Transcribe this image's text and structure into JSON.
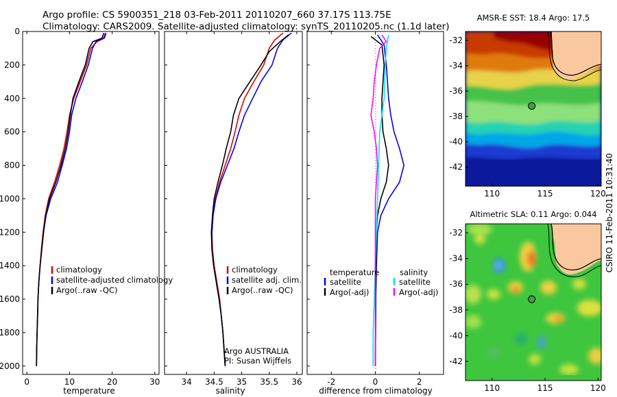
{
  "title": {
    "line1": "Argo profile: CS 5900351_218 03-Feb-2011 20110207_660 37.17S 113.75E",
    "line2": "Climatology: CARS2009. Satellite-adjusted climatology: synTS_20110205.nc (1.1d later)"
  },
  "colors": {
    "climatology": "#dd0000",
    "satellite": "#0000ee",
    "argo": "#000000",
    "cyan": "#00e5ee",
    "magenta": "#ff00ff"
  },
  "chart_data": [
    {
      "type": "line",
      "panel": "temperature",
      "xlabel": "temperature",
      "xlim": [
        -1,
        31
      ],
      "ylim": [
        2050,
        0
      ],
      "y_reversed": true,
      "xticks": [
        0,
        10,
        20,
        30
      ],
      "yticks": [
        0,
        200,
        400,
        600,
        800,
        1000,
        1200,
        1400,
        1600,
        1800,
        2000
      ],
      "legend": {
        "placement": "lower-right",
        "entries": [
          "climatology",
          "satellite-adjusted climatology",
          "Argo(..raw -QC)"
        ]
      },
      "series": [
        {
          "name": "climatology",
          "color": "#dd0000",
          "points": [
            [
              18.6,
              10
            ],
            [
              18.2,
              40
            ],
            [
              16.5,
              60
            ],
            [
              15.0,
              100
            ],
            [
              14.0,
              200
            ],
            [
              12.5,
              300
            ],
            [
              11.0,
              400
            ],
            [
              10.0,
              500
            ],
            [
              9.4,
              600
            ],
            [
              8.7,
              700
            ],
            [
              7.7,
              800
            ],
            [
              6.5,
              900
            ],
            [
              5.1,
              1000
            ],
            [
              4.3,
              1100
            ],
            [
              3.8,
              1200
            ],
            [
              3.4,
              1300
            ],
            [
              3.1,
              1400
            ],
            [
              2.8,
              1500
            ],
            [
              2.6,
              1600
            ],
            [
              2.5,
              1700
            ],
            [
              2.4,
              1800
            ],
            [
              2.3,
              1900
            ],
            [
              2.25,
              2000
            ]
          ]
        },
        {
          "name": "satellite-adjusted climatology",
          "color": "#0000ee",
          "points": [
            [
              18.4,
              10
            ],
            [
              18.0,
              40
            ],
            [
              16.2,
              60
            ],
            [
              15.4,
              100
            ],
            [
              14.4,
              200
            ],
            [
              13.0,
              300
            ],
            [
              11.5,
              400
            ],
            [
              10.5,
              500
            ],
            [
              10.0,
              600
            ],
            [
              9.3,
              700
            ],
            [
              8.3,
              800
            ],
            [
              7.2,
              900
            ],
            [
              5.6,
              1000
            ],
            [
              4.5,
              1100
            ],
            [
              3.9,
              1200
            ],
            [
              3.5,
              1300
            ],
            [
              3.1,
              1400
            ],
            [
              2.8,
              1500
            ],
            [
              2.6,
              1600
            ],
            [
              2.5,
              1700
            ],
            [
              2.4,
              1800
            ],
            [
              2.3,
              1900
            ],
            [
              2.25,
              2000
            ]
          ]
        },
        {
          "name": "Argo(..raw -QC)",
          "color": "#000000",
          "points": [
            [
              18.0,
              10
            ],
            [
              17.6,
              40
            ],
            [
              15.5,
              60
            ],
            [
              14.6,
              100
            ],
            [
              13.7,
              200
            ],
            [
              12.2,
              300
            ],
            [
              10.8,
              400
            ],
            [
              10.2,
              500
            ],
            [
              9.7,
              600
            ],
            [
              9.0,
              700
            ],
            [
              8.0,
              800
            ],
            [
              6.8,
              900
            ],
            [
              5.3,
              1000
            ],
            [
              4.4,
              1100
            ],
            [
              3.9,
              1200
            ],
            [
              3.5,
              1300
            ],
            [
              3.1,
              1400
            ],
            [
              2.8,
              1500
            ],
            [
              2.6,
              1600
            ],
            [
              2.5,
              1700
            ],
            [
              2.4,
              1800
            ],
            [
              2.3,
              1900
            ],
            [
              2.25,
              2000
            ]
          ]
        }
      ]
    },
    {
      "type": "line",
      "panel": "salinity",
      "xlabel": "salinity",
      "xlim": [
        33.6,
        36.1
      ],
      "ylim": [
        2050,
        0
      ],
      "y_reversed": true,
      "xticks": [
        34,
        34.5,
        35,
        35.5,
        36
      ],
      "xticklabels": [
        "34",
        "34.5",
        "35",
        "35.5",
        "36"
      ],
      "legend": {
        "placement": "lower-right",
        "entries": [
          "climatology",
          "satellite adj. clim.",
          "Argo(..raw -QC)"
        ]
      },
      "annotation": {
        "line1": "Argo AUSTRALIA",
        "line2": "PI: Susan Wijffels"
      },
      "series": [
        {
          "name": "climatology",
          "color": "#dd0000",
          "points": [
            [
              35.75,
              10
            ],
            [
              35.6,
              50
            ],
            [
              35.5,
              100
            ],
            [
              35.4,
              200
            ],
            [
              35.22,
              300
            ],
            [
              35.05,
              400
            ],
            [
              34.95,
              500
            ],
            [
              34.88,
              600
            ],
            [
              34.8,
              700
            ],
            [
              34.7,
              800
            ],
            [
              34.6,
              900
            ],
            [
              34.52,
              1000
            ],
            [
              34.48,
              1100
            ],
            [
              34.46,
              1200
            ],
            [
              34.47,
              1300
            ],
            [
              34.5,
              1400
            ],
            [
              34.55,
              1500
            ],
            [
              34.6,
              1600
            ],
            [
              34.63,
              1700
            ],
            [
              34.66,
              1800
            ],
            [
              34.68,
              1900
            ],
            [
              34.7,
              2000
            ]
          ]
        },
        {
          "name": "satellite adj. clim.",
          "color": "#0000ee",
          "points": [
            [
              35.9,
              10
            ],
            [
              35.75,
              50
            ],
            [
              35.65,
              100
            ],
            [
              35.55,
              200
            ],
            [
              35.35,
              300
            ],
            [
              35.2,
              400
            ],
            [
              35.05,
              500
            ],
            [
              34.95,
              600
            ],
            [
              34.86,
              700
            ],
            [
              34.74,
              800
            ],
            [
              34.62,
              900
            ],
            [
              34.53,
              1000
            ],
            [
              34.48,
              1100
            ],
            [
              34.46,
              1200
            ],
            [
              34.46,
              1300
            ],
            [
              34.49,
              1400
            ],
            [
              34.54,
              1500
            ],
            [
              34.59,
              1600
            ],
            [
              34.63,
              1700
            ],
            [
              34.66,
              1800
            ],
            [
              34.68,
              1900
            ],
            [
              34.7,
              2000
            ]
          ]
        },
        {
          "name": "Argo(..raw -QC)",
          "color": "#000000",
          "points": [
            [
              35.85,
              20
            ],
            [
              35.7,
              60
            ],
            [
              35.5,
              120
            ],
            [
              35.35,
              200
            ],
            [
              35.15,
              300
            ],
            [
              34.95,
              400
            ],
            [
              34.85,
              500
            ],
            [
              34.8,
              600
            ],
            [
              34.72,
              700
            ],
            [
              34.65,
              800
            ],
            [
              34.57,
              900
            ],
            [
              34.5,
              1000
            ],
            [
              34.47,
              1100
            ],
            [
              34.45,
              1200
            ],
            [
              34.46,
              1300
            ],
            [
              34.49,
              1400
            ],
            [
              34.54,
              1500
            ],
            [
              34.59,
              1600
            ],
            [
              34.63,
              1700
            ],
            [
              34.66,
              1800
            ],
            [
              34.68,
              1900
            ],
            [
              34.7,
              2000
            ]
          ]
        }
      ]
    },
    {
      "type": "line",
      "panel": "difference",
      "xlabel": "difference from climatology",
      "xlim": [
        -3.1,
        3.1
      ],
      "ylim": [
        2050,
        0
      ],
      "y_reversed": true,
      "xticks": [
        -2,
        0,
        2
      ],
      "zero_line": "dotted",
      "legend": {
        "placement": "lower",
        "col1_title": "temperature",
        "col1": [
          "satellite",
          "Argo(-adj)"
        ],
        "col2_title": "salinity",
        "col2": [
          "satellite",
          "Argo(-adj)"
        ]
      },
      "series": [
        {
          "name": "temperature satellite",
          "color": "#0000ee",
          "points": [
            [
              0.1,
              20
            ],
            [
              0.4,
              80
            ],
            [
              0.5,
              200
            ],
            [
              0.55,
              300
            ],
            [
              0.6,
              400
            ],
            [
              0.7,
              500
            ],
            [
              0.85,
              600
            ],
            [
              1.1,
              700
            ],
            [
              1.3,
              800
            ],
            [
              1.1,
              900
            ],
            [
              0.6,
              1000
            ],
            [
              0.25,
              1100
            ],
            [
              0.1,
              1200
            ],
            [
              0.05,
              1400
            ],
            [
              0.02,
              1600
            ],
            [
              0.0,
              2000
            ]
          ]
        },
        {
          "name": "temperature Argo(-adj)",
          "color": "#000000",
          "points": [
            [
              -0.2,
              30
            ],
            [
              0.3,
              80
            ],
            [
              0.4,
              200
            ],
            [
              0.35,
              300
            ],
            [
              0.3,
              400
            ],
            [
              0.3,
              500
            ],
            [
              0.35,
              600
            ],
            [
              0.5,
              700
            ],
            [
              0.6,
              800
            ],
            [
              0.5,
              900
            ],
            [
              0.25,
              1000
            ],
            [
              0.1,
              1100
            ],
            [
              0.05,
              1200
            ],
            [
              0.03,
              1400
            ],
            [
              0.02,
              1600
            ],
            [
              0.0,
              2000
            ]
          ]
        },
        {
          "name": "salinity satellite",
          "color": "#00e5ee",
          "points": [
            [
              0.6,
              20
            ],
            [
              0.5,
              100
            ],
            [
              0.45,
              200
            ],
            [
              0.4,
              400
            ],
            [
              0.3,
              500
            ],
            [
              0.2,
              600
            ],
            [
              0.15,
              800
            ],
            [
              0.1,
              1000
            ],
            [
              0.05,
              1200
            ],
            [
              0.0,
              1400
            ],
            [
              -0.05,
              1600
            ],
            [
              -0.1,
              1800
            ],
            [
              -0.1,
              2000
            ]
          ]
        },
        {
          "name": "salinity Argo(-adj)",
          "color": "#ff00ff",
          "points": [
            [
              0.3,
              20
            ],
            [
              0.5,
              60
            ],
            [
              0.2,
              100
            ],
            [
              0.05,
              200
            ],
            [
              -0.05,
              300
            ],
            [
              -0.1,
              400
            ],
            [
              -0.2,
              500
            ],
            [
              -0.05,
              600
            ],
            [
              0.05,
              700
            ],
            [
              0.1,
              800
            ],
            [
              0.05,
              900
            ],
            [
              0.0,
              1000
            ],
            [
              0.0,
              1200
            ],
            [
              0.0,
              2000
            ]
          ]
        }
      ]
    }
  ],
  "maps": [
    {
      "id": "sst",
      "title": "AMSR-E SST: 18.4 Argo: 17.5",
      "xlim": [
        107.5,
        120.3
      ],
      "ylim": [
        -43.5,
        -31.3
      ],
      "xticks": [
        110,
        115,
        120
      ],
      "yticks": [
        -32,
        -34,
        -36,
        -38,
        -40,
        -42
      ],
      "float": {
        "lon": 113.75,
        "lat": -37.17
      }
    },
    {
      "id": "sla",
      "title": "Altimetric SLA: 0.11 Argo: 0.044",
      "xlim": [
        107.5,
        120.3
      ],
      "ylim": [
        -43.5,
        -31.3
      ],
      "xticks": [
        110,
        115,
        120
      ],
      "yticks": [
        -32,
        -34,
        -36,
        -38,
        -40,
        -42
      ],
      "float": {
        "lon": 113.75,
        "lat": -37.17
      }
    }
  ],
  "side_label": "CSIRO 11-Feb-2011 10:31:40"
}
